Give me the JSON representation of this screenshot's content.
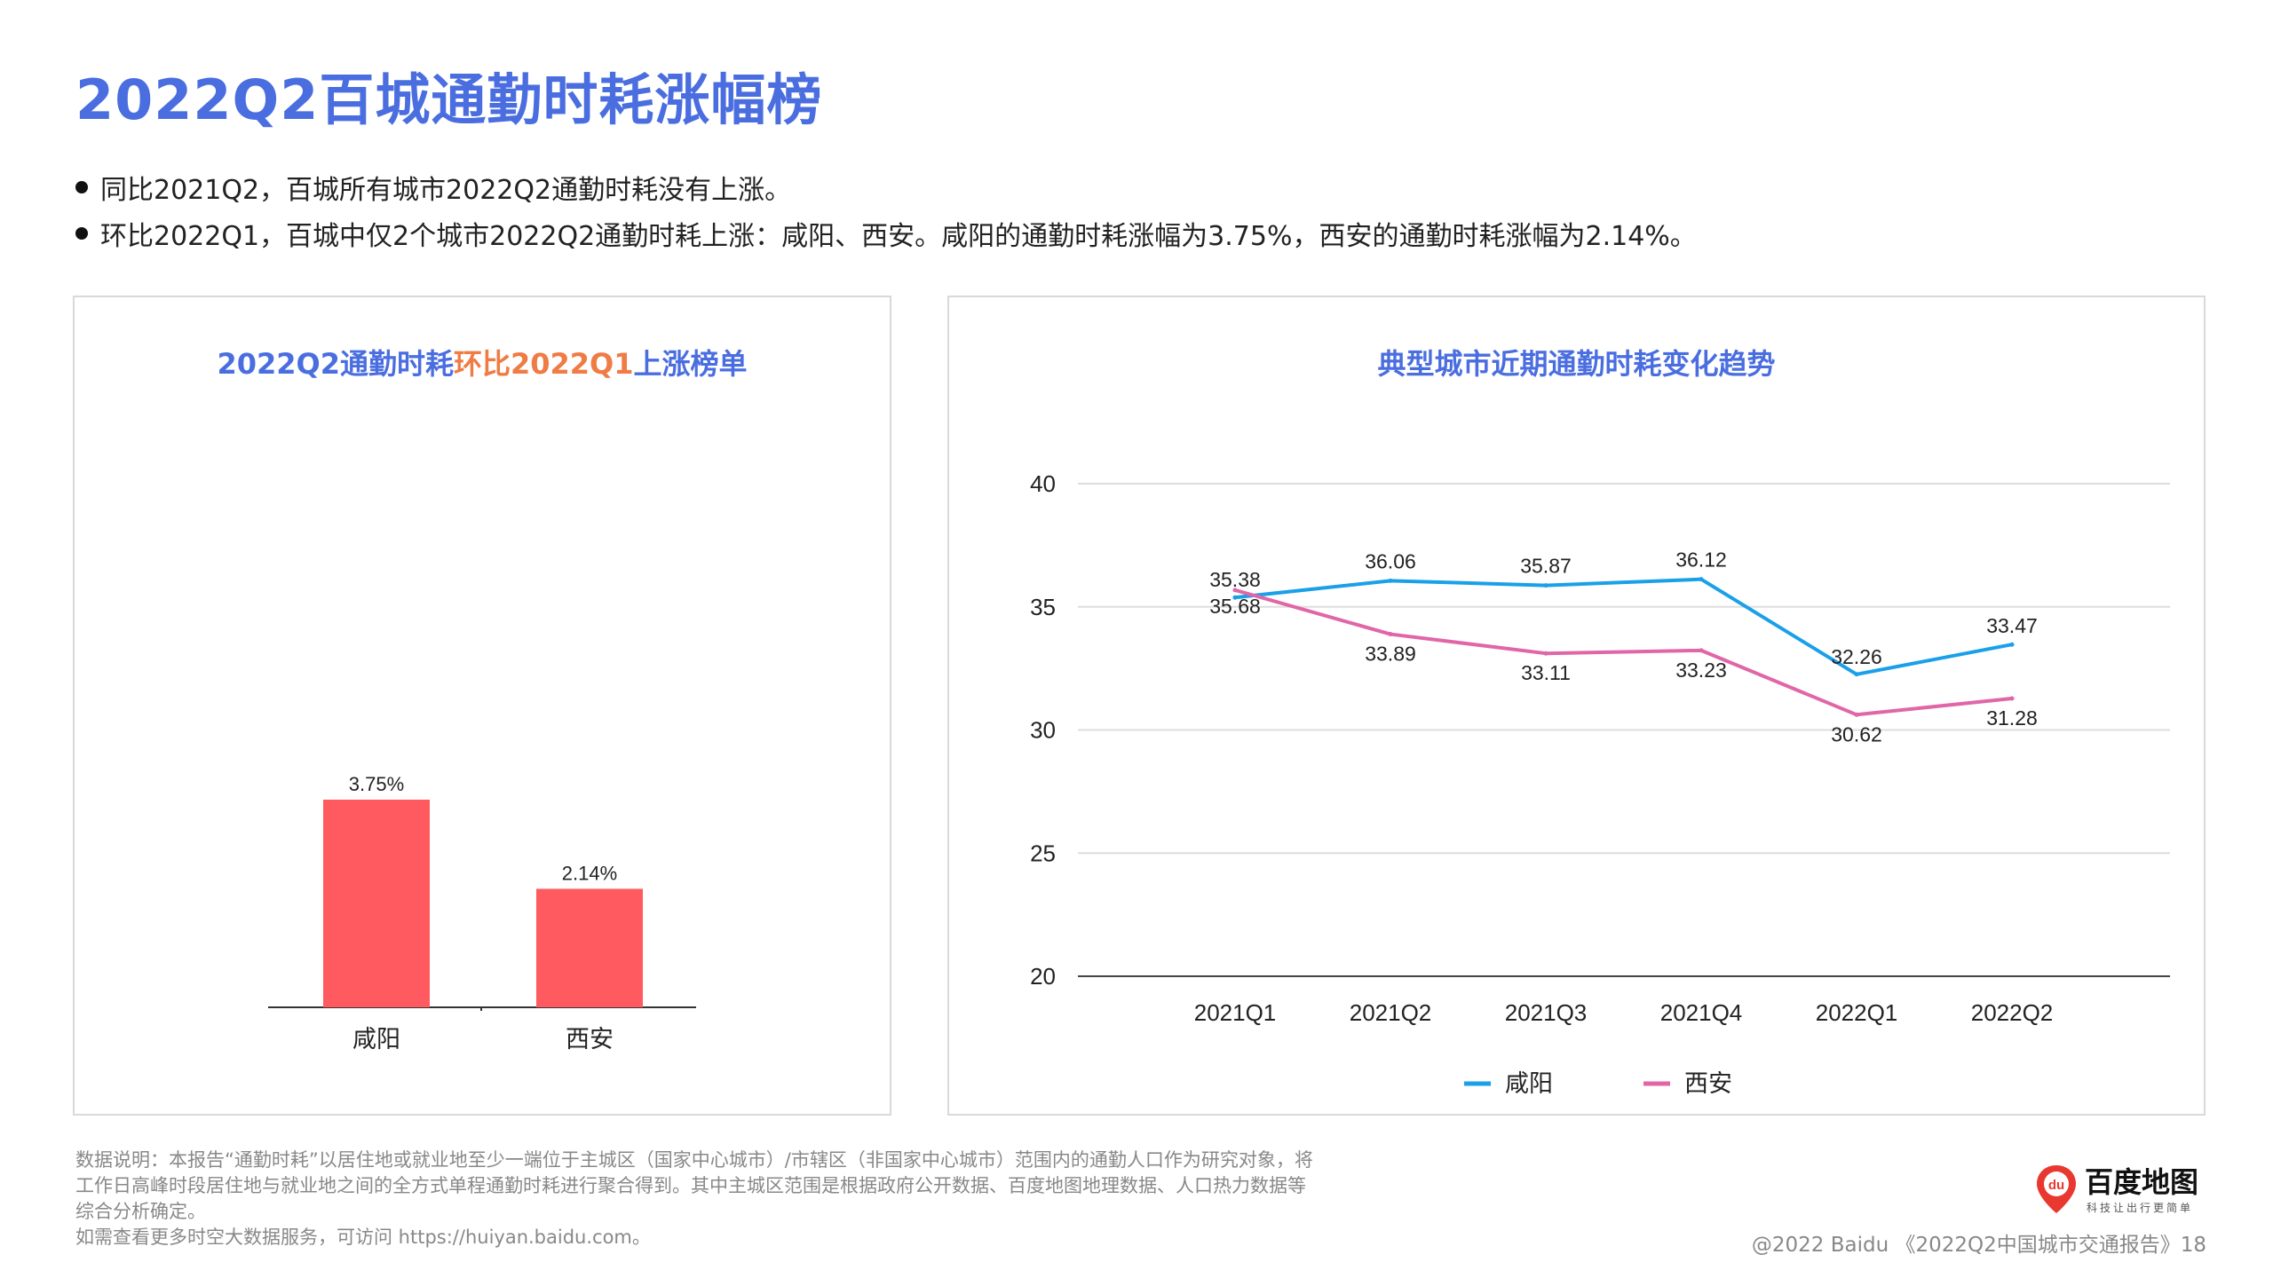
{
  "page": {
    "title": "2022Q2百城通勤时耗涨幅榜",
    "bullets": [
      "同比2021Q2，百城所有城市2022Q2通勤时耗没有上涨。",
      "环比2022Q1，百城中仅2个城市2022Q2通勤时耗上涨：咸阳、西安。咸阳的通勤时耗涨幅为3.75%，西安的通勤时耗涨幅为2.14%。"
    ]
  },
  "left_panel": {
    "title_part1": "2022Q2通勤时耗",
    "title_part2": "环比2022Q1",
    "title_part3": "上涨榜单"
  },
  "right_panel": {
    "title": "典型城市近期通勤时耗变化趋势"
  },
  "footnote": {
    "lines": [
      "数据说明：本报告“通勤时耗”以居住地或就业地至少一端位于主城区（国家中心城市）/市辖区（非国家中心城市）范围内的通勤人口作为研究对象，将",
      "工作日高峰时段居住地与就业地之间的全方式单程通勤时耗进行聚合得到。其中主城区范围是根据政府公开数据、百度地图地理数据、人口热力数据等",
      "综合分析确定。",
      "如需查看更多时空大数据服务，可访问 https://huiyan.baidu.com。"
    ]
  },
  "credit": "@2022 Baidu 《2022Q2中国城市交通报告》18",
  "logo": {
    "text": "百度地图",
    "tagline": "科技让出行更简单",
    "badge": "du",
    "brand_color": "#e8382f"
  },
  "colors": {
    "title_blue": "#4a6ee0",
    "highlight_orange": "#ef7b45",
    "bar_red": "#ff5a5f",
    "xianyang_blue": "#1aa0e8",
    "xian_pink": "#e066a8"
  },
  "chart_data": [
    {
      "type": "bar",
      "title": "2022Q2通勤时耗环比2022Q1上涨榜单",
      "categories": [
        "咸阳",
        "西安"
      ],
      "values": [
        3.75,
        2.14
      ],
      "value_labels": [
        "3.75%",
        "2.14%"
      ],
      "ylim": [
        0,
        5.3
      ],
      "grid": false
    },
    {
      "type": "line",
      "title": "典型城市近期通勤时耗变化趋势",
      "categories": [
        "2021Q1",
        "2021Q2",
        "2021Q3",
        "2021Q4",
        "2022Q1",
        "2022Q2"
      ],
      "series": [
        {
          "name": "咸阳",
          "values": [
            35.38,
            36.06,
            35.87,
            36.12,
            32.26,
            33.47
          ],
          "color": "#1aa0e8"
        },
        {
          "name": "西安",
          "values": [
            35.68,
            33.89,
            33.11,
            33.23,
            30.62,
            31.28
          ],
          "color": "#e066a8"
        }
      ],
      "yticks": [
        20,
        25,
        30,
        35,
        40
      ],
      "ylim": [
        20,
        40
      ],
      "grid": true,
      "legend": "bottom"
    }
  ]
}
